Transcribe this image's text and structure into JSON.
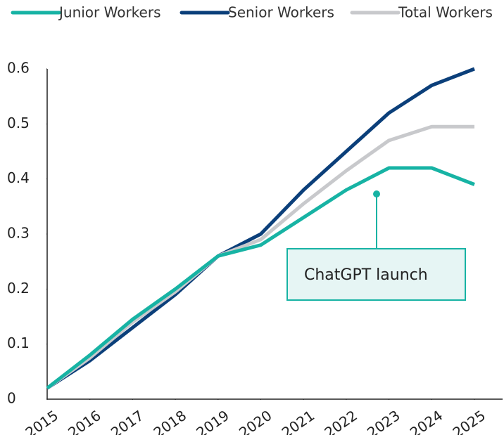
{
  "chart_data": {
    "type": "line",
    "x": [
      2015,
      2016,
      2017,
      2018,
      2019,
      2020,
      2021,
      2022,
      2023,
      2024,
      2025
    ],
    "xlim": [
      2015,
      2025
    ],
    "xticks": [
      2015,
      2016,
      2017,
      2018,
      2019,
      2020,
      2021,
      2022,
      2023,
      2024,
      2025
    ],
    "ylim": [
      0,
      0.6
    ],
    "yticks": [
      0,
      0.1,
      0.2,
      0.3,
      0.4,
      0.5,
      0.6
    ],
    "grid": false,
    "legend": "top",
    "series": [
      {
        "name": "Junior Workers",
        "color": "#17b3a4",
        "values": [
          0.02,
          0.08,
          0.145,
          0.2,
          0.26,
          0.28,
          0.33,
          0.38,
          0.42,
          0.42,
          0.39
        ]
      },
      {
        "name": "Senior Workers",
        "color": "#0b3f7a",
        "values": [
          0.02,
          0.07,
          0.13,
          0.19,
          0.26,
          0.3,
          0.38,
          0.45,
          0.52,
          0.57,
          0.6
        ]
      },
      {
        "name": "Total Workers",
        "color": "#c8c9cc",
        "values": [
          0.02,
          0.075,
          0.14,
          0.195,
          0.26,
          0.29,
          0.355,
          0.415,
          0.47,
          0.495,
          0.495
        ]
      }
    ],
    "annotations": [
      {
        "text": "ChatGPT launch"
      }
    ]
  }
}
